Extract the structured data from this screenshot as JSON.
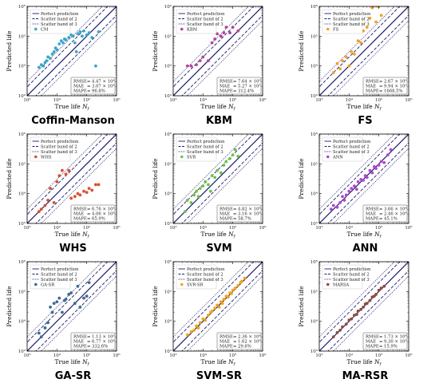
{
  "legend_common": [
    "Perfect prediction",
    "Scatter band of 2",
    "Scatter band of 3"
  ],
  "metric_labels": [
    "RMSE",
    "MAE",
    "MAPE"
  ],
  "axes": {
    "xlabel": "True life N_f",
    "ylabel": "Predicted life",
    "tick_labels": [
      "10³",
      "10⁴",
      "10⁵",
      "10⁶"
    ]
  },
  "colors": {
    "CM": "#3aa6c6",
    "KBM": "#b3449a",
    "FS": "#f5a023",
    "WHS": "#d9502e",
    "SVR": "#6cc24a",
    "ANN": "#b048cf",
    "GA-SR": "#3e6b93",
    "SVR-SR": "#f0a41d",
    "MARSA": "#8c4c43",
    "lines": "#1c1c6e"
  },
  "chart_data": [
    {
      "type": "scatter",
      "title": "Coffin-Manson",
      "legend": "CM",
      "color": "CM",
      "xlim": [
        1000,
        1000000
      ],
      "ylim": [
        1000,
        1000000
      ],
      "log": true,
      "metrics": {
        "RMSE": "4.47 × 10⁴",
        "MAE": "3.07 × 10⁴",
        "MAPE": "96.8%"
      },
      "x": [
        2500,
        3000,
        3500,
        4000,
        4500,
        5000,
        6000,
        7000,
        8000,
        9000,
        10000,
        12000,
        14000,
        16000,
        18000,
        20000,
        25000,
        30000,
        35000,
        40000,
        45000,
        50000,
        60000,
        70000,
        80000,
        100000,
        120000,
        150000,
        200000,
        250000
      ],
      "y": [
        9000,
        11000,
        10000,
        13000,
        15000,
        20000,
        18000,
        25000,
        30000,
        40000,
        35000,
        55000,
        70000,
        60000,
        80000,
        75000,
        90000,
        110000,
        100000,
        60000,
        30000,
        120000,
        140000,
        100000,
        150000,
        110000,
        130000,
        90000,
        10000,
        140000
      ]
    },
    {
      "type": "scatter",
      "title": "KBM",
      "legend": "KBM",
      "color": "KBM",
      "xlim": [
        1000,
        1000000
      ],
      "ylim": [
        1000,
        1000000
      ],
      "log": true,
      "metrics": {
        "RMSE": "7.64 × 10⁵",
        "MAE": "5.27 × 10⁵",
        "MAPE": "312.4%"
      },
      "x": [
        3000,
        4000,
        6000,
        8000,
        10000,
        12000,
        15000,
        20000,
        25000,
        30000,
        40000,
        50000,
        60000,
        80000,
        100000,
        150000,
        20000
      ],
      "y": [
        10000,
        10000,
        11000,
        15000,
        20000,
        150000,
        15000,
        60000,
        80000,
        120000,
        100000,
        130000,
        200000,
        130000,
        200000,
        150000,
        700000
      ]
    },
    {
      "type": "scatter",
      "title": "FS",
      "legend": "FS",
      "color": "FS",
      "xlim": [
        1000,
        1000000
      ],
      "ylim": [
        1000,
        1000000
      ],
      "log": true,
      "metrics": {
        "RMSE": "2.67 × 10⁶",
        "MAE": "9.94 × 10⁵",
        "MAPE": "1668.5%"
      },
      "x": [
        3000,
        4000,
        5000,
        6000,
        8000,
        10000,
        12000,
        15000,
        20000,
        25000,
        30000,
        40000,
        50000,
        60000,
        80000,
        100000,
        120000
      ],
      "y": [
        6000,
        12000,
        8000,
        15000,
        20000,
        10000,
        30000,
        25000,
        70000,
        60000,
        150000,
        200000,
        400000,
        900000,
        300000,
        1000000,
        500000
      ]
    },
    {
      "type": "scatter",
      "title": "WHS",
      "legend": "WHS",
      "color": "WHS",
      "xlim": [
        1000,
        1000000
      ],
      "ylim": [
        1000,
        1000000
      ],
      "log": true,
      "metrics": {
        "RMSE": "6.76 × 10⁴",
        "MAE": "4.06 × 10⁴",
        "MAPE": "65.9%"
      },
      "x": [
        2500,
        3000,
        4000,
        5000,
        6000,
        8000,
        10000,
        12000,
        15000,
        20000,
        25000,
        30000,
        40000,
        50000,
        60000,
        80000,
        100000,
        120000,
        150000,
        200000,
        250000
      ],
      "y": [
        2500,
        3000,
        4000,
        6000,
        15000,
        5000,
        25000,
        40000,
        60000,
        45000,
        60000,
        7000,
        8000,
        10000,
        9000,
        12000,
        11000,
        15000,
        13000,
        20000,
        20000
      ]
    },
    {
      "type": "scatter",
      "title": "SVM",
      "legend": "SVR",
      "color": "SVR",
      "xlim": [
        1000,
        1000000
      ],
      "ylim": [
        1000,
        1000000
      ],
      "log": true,
      "metrics": {
        "RMSE": "4.82 × 10⁴",
        "MAE": "3.16 × 10⁴",
        "MAPE": "58.7%"
      },
      "x": [
        2500,
        3000,
        4000,
        5000,
        6000,
        7000,
        8000,
        10000,
        12000,
        15000,
        18000,
        20000,
        25000,
        30000,
        40000,
        50000,
        60000,
        80000,
        100000,
        120000,
        150000
      ],
      "y": [
        2500,
        6000,
        5000,
        9000,
        12000,
        8000,
        15000,
        18000,
        25000,
        20000,
        12000,
        40000,
        35000,
        60000,
        50000,
        90000,
        120000,
        150000,
        200000,
        300000,
        180000
      ]
    },
    {
      "type": "scatter",
      "title": "ANN",
      "legend": "ANN",
      "color": "ANN",
      "xlim": [
        1000,
        1000000
      ],
      "ylim": [
        1000,
        1000000
      ],
      "log": true,
      "metrics": {
        "RMSE": "3.66 × 10⁴",
        "MAE": "2.46 × 10⁴",
        "MAPE": "45.1%"
      },
      "x": [
        2500,
        3000,
        4000,
        5000,
        6000,
        7000,
        8000,
        10000,
        12000,
        15000,
        18000,
        20000,
        25000,
        30000,
        35000,
        40000,
        50000,
        60000,
        70000,
        80000,
        100000,
        120000,
        150000,
        200000,
        250000
      ],
      "y": [
        3000,
        4000,
        3500,
        5000,
        8000,
        6000,
        9000,
        12000,
        15000,
        18000,
        14000,
        25000,
        30000,
        28000,
        40000,
        35000,
        60000,
        50000,
        80000,
        70000,
        90000,
        120000,
        110000,
        200000,
        300000
      ]
    },
    {
      "type": "scatter",
      "title": "GA-SR",
      "legend": "GA-SR",
      "color": "GA-SR",
      "xlim": [
        1000,
        1000000
      ],
      "ylim": [
        1000,
        1000000
      ],
      "log": true,
      "metrics": {
        "RMSE": "1.13 × 10⁵",
        "MAE": "6.77 × 10⁴",
        "MAPE": "332.6%"
      },
      "x": [
        2500,
        3000,
        4000,
        5000,
        6000,
        7000,
        8000,
        10000,
        12000,
        15000,
        18000,
        20000,
        25000,
        30000,
        40000,
        50000,
        60000,
        80000,
        100000,
        120000
      ],
      "y": [
        4000,
        3000,
        6000,
        9000,
        30000,
        20000,
        40000,
        45000,
        60000,
        20000,
        50000,
        55000,
        80000,
        90000,
        40000,
        150000,
        30000,
        60000,
        70000,
        200000
      ]
    },
    {
      "type": "scatter",
      "title": "SVM-SR",
      "legend": "SVR-SR",
      "color": "SVR-SR",
      "xlim": [
        1000,
        1000000
      ],
      "ylim": [
        1000,
        1000000
      ],
      "log": true,
      "metrics": {
        "RMSE": "2.36 × 10⁴",
        "MAE": "1.62 × 10⁴",
        "MAPE": "29.6%"
      },
      "x": [
        3000,
        4000,
        5000,
        6000,
        7000,
        8000,
        10000,
        12000,
        15000,
        18000,
        20000,
        25000,
        30000,
        35000,
        40000,
        45000,
        50000,
        60000,
        70000,
        80000,
        90000,
        100000,
        120000,
        150000,
        180000,
        200000,
        250000
      ],
      "y": [
        3500,
        4500,
        5000,
        7000,
        6000,
        9000,
        12000,
        11000,
        16000,
        20000,
        22000,
        28000,
        35000,
        30000,
        45000,
        40000,
        55000,
        70000,
        65000,
        90000,
        85000,
        110000,
        130000,
        160000,
        200000,
        220000,
        280000
      ]
    },
    {
      "type": "scatter",
      "title": "MA-RSR",
      "legend": "MARSA",
      "color": "MARSA",
      "xlim": [
        1000,
        1000000
      ],
      "ylim": [
        1000,
        1000000
      ],
      "log": true,
      "metrics": {
        "RMSE": "1.73 × 10⁴",
        "MAE": "9.30 × 10³",
        "MAPE": "15.9%"
      },
      "x": [
        3000,
        4000,
        5000,
        6000,
        8000,
        10000,
        12000,
        15000,
        18000,
        20000,
        25000,
        30000,
        35000,
        40000,
        50000,
        60000,
        70000,
        80000,
        100000,
        120000,
        150000
      ],
      "y": [
        3000,
        4200,
        5000,
        6500,
        8000,
        11000,
        12000,
        16000,
        17000,
        22000,
        25000,
        30000,
        38000,
        40000,
        50000,
        65000,
        70000,
        80000,
        110000,
        130000,
        150000
      ]
    }
  ]
}
